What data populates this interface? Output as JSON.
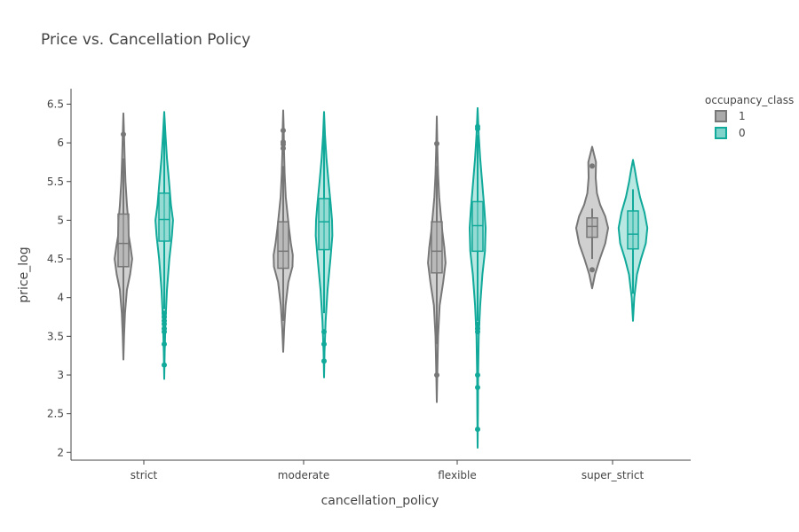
{
  "chart_data": {
    "type": "violin",
    "title": "Price vs. Cancellation Policy",
    "xlabel": "cancellation_policy",
    "ylabel": "price_log",
    "categories": [
      "strict",
      "moderate",
      "flexible",
      "super_strict"
    ],
    "ylim": [
      1.9,
      6.7
    ],
    "yticks": [
      2,
      2.5,
      3,
      3.5,
      4,
      4.5,
      5,
      5.5,
      6,
      6.5
    ],
    "legend": {
      "title": "occupancy_class",
      "placement": "top-right"
    },
    "series": [
      {
        "name": "1",
        "line_color": "#777777",
        "fill_color": "#aaaaaa",
        "groups": [
          {
            "category": "strict",
            "min": 3.2,
            "max": 6.38,
            "q1": 4.4,
            "median": 4.7,
            "q3": 5.08,
            "whisker_low": 3.6,
            "whisker_high": 5.8,
            "outliers": [
              6.11
            ],
            "density": [
              [
                3.2,
                0.0
              ],
              [
                3.5,
                0.04
              ],
              [
                3.8,
                0.1
              ],
              [
                4.1,
                0.22
              ],
              [
                4.3,
                0.42
              ],
              [
                4.5,
                0.55
              ],
              [
                4.65,
                0.45
              ],
              [
                4.8,
                0.33
              ],
              [
                5.0,
                0.3
              ],
              [
                5.2,
                0.22
              ],
              [
                5.5,
                0.13
              ],
              [
                5.8,
                0.08
              ],
              [
                6.1,
                0.04
              ],
              [
                6.38,
                0.0
              ]
            ]
          },
          {
            "category": "moderate",
            "min": 3.3,
            "max": 6.42,
            "q1": 4.38,
            "median": 4.6,
            "q3": 4.98,
            "whisker_low": 3.7,
            "whisker_high": 5.7,
            "outliers": [
              5.93,
              5.98,
              6.01,
              6.16
            ],
            "density": [
              [
                3.3,
                0.0
              ],
              [
                3.6,
                0.06
              ],
              [
                3.9,
                0.15
              ],
              [
                4.2,
                0.32
              ],
              [
                4.4,
                0.58
              ],
              [
                4.55,
                0.6
              ],
              [
                4.7,
                0.48
              ],
              [
                4.9,
                0.36
              ],
              [
                5.1,
                0.26
              ],
              [
                5.3,
                0.16
              ],
              [
                5.6,
                0.09
              ],
              [
                5.9,
                0.05
              ],
              [
                6.2,
                0.03
              ],
              [
                6.42,
                0.0
              ]
            ]
          },
          {
            "category": "flexible",
            "min": 2.65,
            "max": 6.34,
            "q1": 4.32,
            "median": 4.6,
            "q3": 4.98,
            "whisker_low": 3.4,
            "whisker_high": 5.7,
            "outliers": [
              3.0,
              5.99
            ],
            "density": [
              [
                2.65,
                0.0
              ],
              [
                3.0,
                0.03
              ],
              [
                3.5,
                0.08
              ],
              [
                3.9,
                0.18
              ],
              [
                4.2,
                0.4
              ],
              [
                4.45,
                0.55
              ],
              [
                4.65,
                0.47
              ],
              [
                4.85,
                0.35
              ],
              [
                5.05,
                0.26
              ],
              [
                5.3,
                0.15
              ],
              [
                5.6,
                0.08
              ],
              [
                5.9,
                0.04
              ],
              [
                6.34,
                0.0
              ]
            ]
          },
          {
            "category": "super_strict",
            "min": 4.12,
            "max": 5.95,
            "q1": 4.78,
            "median": 4.92,
            "q3": 5.03,
            "whisker_low": 4.5,
            "whisker_high": 5.15,
            "outliers": [
              4.36,
              5.7
            ],
            "density": [
              [
                4.12,
                0.0
              ],
              [
                4.3,
                0.18
              ],
              [
                4.5,
                0.48
              ],
              [
                4.7,
                0.82
              ],
              [
                4.9,
                1.0
              ],
              [
                5.05,
                0.82
              ],
              [
                5.2,
                0.5
              ],
              [
                5.35,
                0.3
              ],
              [
                5.55,
                0.22
              ],
              [
                5.75,
                0.24
              ],
              [
                5.95,
                0.0
              ]
            ]
          }
        ]
      },
      {
        "name": "0",
        "line_color": "#10a99a",
        "fill_color": "#7fd3ca",
        "groups": [
          {
            "category": "strict",
            "min": 2.95,
            "max": 6.4,
            "q1": 4.73,
            "median": 5.01,
            "q3": 5.35,
            "whisker_low": 3.85,
            "whisker_high": 6.2,
            "outliers": [
              3.13,
              3.4,
              3.56,
              3.6,
              3.66,
              3.7,
              3.75,
              3.8
            ],
            "density": [
              [
                2.95,
                0.0
              ],
              [
                3.3,
                0.03
              ],
              [
                3.7,
                0.08
              ],
              [
                4.1,
                0.17
              ],
              [
                4.5,
                0.32
              ],
              [
                4.8,
                0.48
              ],
              [
                5.0,
                0.55
              ],
              [
                5.2,
                0.42
              ],
              [
                5.5,
                0.3
              ],
              [
                5.8,
                0.17
              ],
              [
                6.1,
                0.08
              ],
              [
                6.4,
                0.0
              ]
            ]
          },
          {
            "category": "moderate",
            "min": 2.97,
            "max": 6.4,
            "q1": 4.62,
            "median": 4.98,
            "q3": 5.28,
            "whisker_low": 3.8,
            "whisker_high": 6.1,
            "outliers": [
              3.18,
              3.4,
              3.56
            ],
            "density": [
              [
                2.97,
                0.0
              ],
              [
                3.3,
                0.03
              ],
              [
                3.7,
                0.1
              ],
              [
                4.1,
                0.22
              ],
              [
                4.5,
                0.4
              ],
              [
                4.8,
                0.52
              ],
              [
                5.0,
                0.5
              ],
              [
                5.2,
                0.42
              ],
              [
                5.5,
                0.28
              ],
              [
                5.8,
                0.15
              ],
              [
                6.1,
                0.06
              ],
              [
                6.4,
                0.0
              ]
            ]
          },
          {
            "category": "flexible",
            "min": 2.06,
            "max": 6.45,
            "q1": 4.6,
            "median": 4.93,
            "q3": 5.24,
            "whisker_low": 3.7,
            "whisker_high": 6.1,
            "outliers": [
              2.3,
              2.84,
              3.0,
              3.56,
              3.6,
              3.66,
              6.18,
              6.21
            ],
            "density": [
              [
                2.06,
                0.0
              ],
              [
                2.5,
                0.02
              ],
              [
                3.0,
                0.03
              ],
              [
                3.5,
                0.07
              ],
              [
                3.9,
                0.16
              ],
              [
                4.3,
                0.3
              ],
              [
                4.6,
                0.46
              ],
              [
                4.9,
                0.5
              ],
              [
                5.15,
                0.42
              ],
              [
                5.5,
                0.28
              ],
              [
                5.8,
                0.16
              ],
              [
                6.1,
                0.07
              ],
              [
                6.45,
                0.0
              ]
            ]
          },
          {
            "category": "super_strict",
            "min": 3.7,
            "max": 5.78,
            "q1": 4.63,
            "median": 4.82,
            "q3": 5.12,
            "whisker_low": 4.05,
            "whisker_high": 5.4,
            "outliers": [],
            "density": [
              [
                3.7,
                0.0
              ],
              [
                4.0,
                0.08
              ],
              [
                4.3,
                0.25
              ],
              [
                4.5,
                0.5
              ],
              [
                4.7,
                0.8
              ],
              [
                4.9,
                0.9
              ],
              [
                5.1,
                0.72
              ],
              [
                5.3,
                0.44
              ],
              [
                5.5,
                0.24
              ],
              [
                5.65,
                0.12
              ],
              [
                5.78,
                0.0
              ]
            ]
          }
        ]
      }
    ]
  }
}
